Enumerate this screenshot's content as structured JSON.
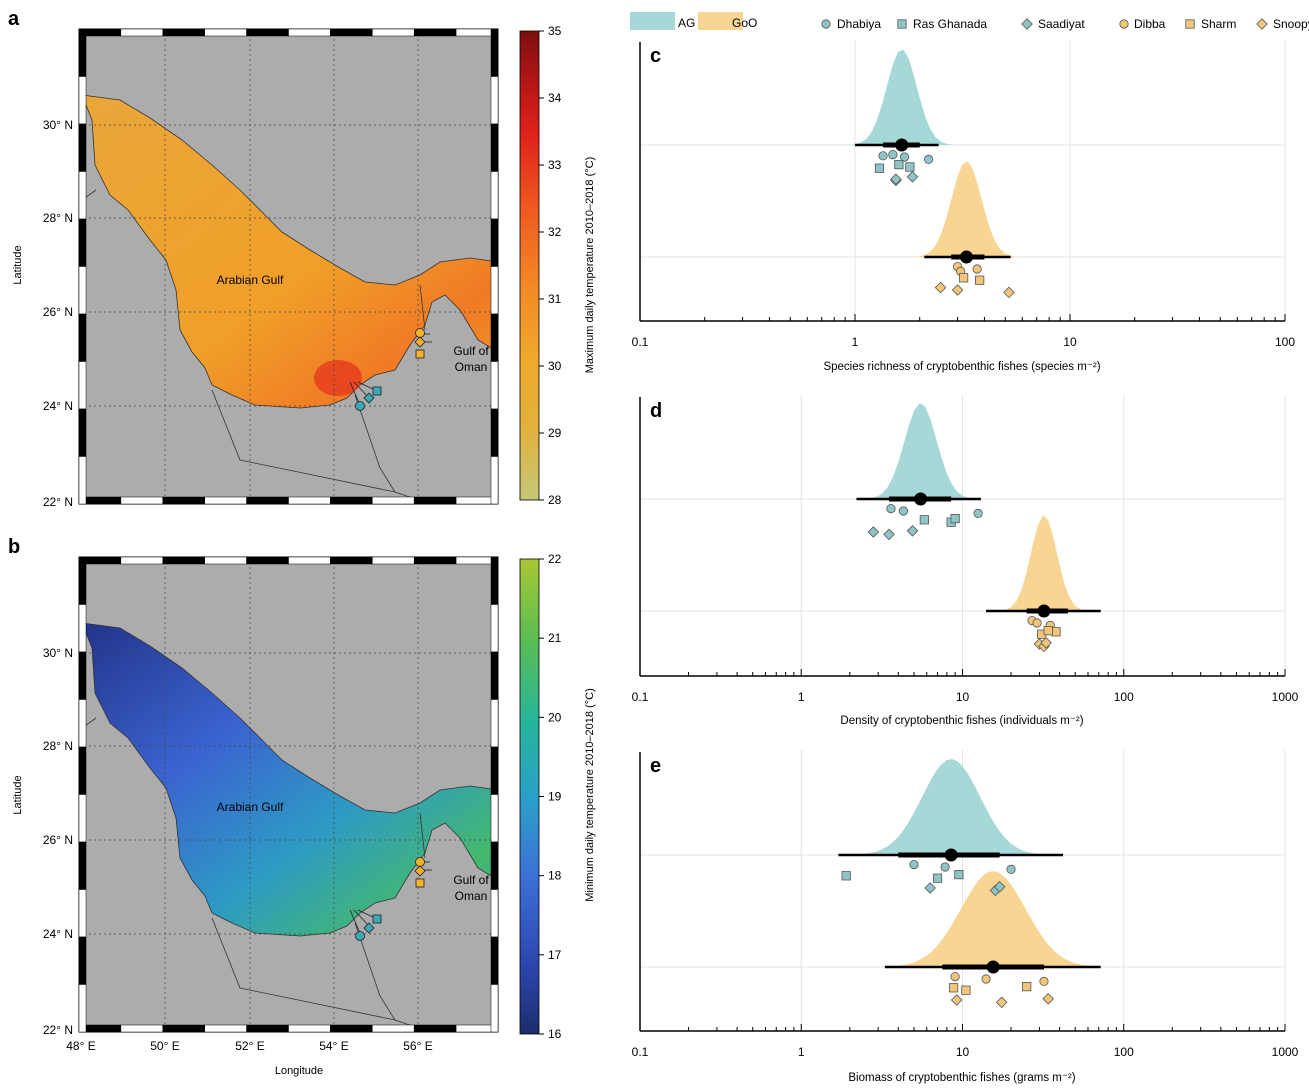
{
  "panels": {
    "a": {
      "label": "a",
      "xlabel": "Longitude",
      "ylabel": "Latitude",
      "colorbar_label": "Maximum daily temperature 2010–2018 (°C)",
      "colorbar_ticks": [
        "28",
        "29",
        "30",
        "31",
        "32",
        "33",
        "34",
        "35"
      ],
      "colors": [
        "#c5c778",
        "#e3b13a",
        "#f0a92b",
        "#f28a26",
        "#ef5a20",
        "#e0221b",
        "#b01516",
        "#7d0f0f"
      ],
      "region_labels": {
        "arabian_gulf": "Arabian Gulf",
        "gulf_of_oman_1": "Gulf of",
        "gulf_of_oman_2": "Oman"
      }
    },
    "b": {
      "label": "b",
      "xlabel": "Longitude",
      "ylabel": "Latitude",
      "colorbar_label": "Minimum daily temperature 2010–2018 (°C)",
      "colorbar_ticks": [
        "16",
        "17",
        "18",
        "19",
        "20",
        "21",
        "22"
      ],
      "colors": [
        "#1c2e6e",
        "#2d47b0",
        "#3c70d6",
        "#2aa0c8",
        "#27b59a",
        "#5bbd53",
        "#a8c732"
      ],
      "region_labels": {
        "arabian_gulf": "Arabian Gulf",
        "gulf_of_oman_1": "Gulf of",
        "gulf_of_oman_2": "Oman"
      }
    },
    "map_ticks": {
      "lat": [
        "30° N",
        "28° N",
        "26° N",
        "24° N",
        "22° N"
      ],
      "lon": [
        "48° E",
        "50° E",
        "52° E",
        "54° E",
        "56° E"
      ]
    }
  },
  "legend": {
    "regions": [
      {
        "name": "AG",
        "color": "#a6d8d8"
      },
      {
        "name": "GoO",
        "color": "#f8d592"
      }
    ],
    "sites": [
      {
        "name": "Dhabiya",
        "shape": "circle",
        "region": "AG"
      },
      {
        "name": "Ras Ghanada",
        "shape": "square",
        "region": "AG"
      },
      {
        "name": "Saadiyat",
        "shape": "diamond",
        "region": "AG"
      },
      {
        "name": "Dibba",
        "shape": "circle",
        "region": "GoO"
      },
      {
        "name": "Sharm",
        "shape": "square",
        "region": "GoO"
      },
      {
        "name": "Snoopy",
        "shape": "diamond",
        "region": "GoO"
      }
    ],
    "marker_colors": {
      "AG": "#8fc4c6",
      "GoO": "#f1c57a"
    }
  },
  "chart_data": [
    {
      "panel": "c",
      "type": "scatter",
      "label": "c",
      "xlabel": "Species richness of cryptobenthic fishes (species m⁻²)",
      "xscale": "log",
      "xlim": [
        0.1,
        100
      ],
      "xticks": [
        "0.1",
        "1",
        "10",
        "100"
      ],
      "series": [
        {
          "name": "AG",
          "mean": 1.65,
          "ci_inner": [
            1.35,
            2.0
          ],
          "ci_outer": [
            1.0,
            2.45
          ],
          "density_width": 0.07,
          "points": [
            [
              1.5,
              "circle"
            ],
            [
              1.7,
              "circle"
            ],
            [
              2.2,
              "circle"
            ],
            [
              1.35,
              "circle"
            ],
            [
              1.3,
              "square"
            ],
            [
              1.6,
              "square"
            ],
            [
              1.8,
              "square"
            ],
            [
              1.55,
              "diamond"
            ],
            [
              1.85,
              "diamond"
            ],
            [
              1.55,
              "diamond"
            ]
          ]
        },
        {
          "name": "GoO",
          "mean": 3.3,
          "ci_inner": [
            2.8,
            4.0
          ],
          "ci_outer": [
            2.1,
            5.3
          ],
          "density_width": 0.07,
          "points": [
            [
              3.0,
              "circle"
            ],
            [
              3.7,
              "circle"
            ],
            [
              3.1,
              "circle"
            ],
            [
              3.2,
              "square"
            ],
            [
              3.8,
              "square"
            ],
            [
              2.5,
              "diamond"
            ],
            [
              3.0,
              "diamond"
            ],
            [
              5.2,
              "diamond"
            ]
          ]
        }
      ]
    },
    {
      "panel": "d",
      "type": "scatter",
      "label": "d",
      "xlabel": "Density of cryptobenthic fishes (individuals m⁻²)",
      "xscale": "log",
      "xlim": [
        0.1,
        1000
      ],
      "xticks": [
        "0.1",
        "1",
        "10",
        "100",
        "1000"
      ],
      "series": [
        {
          "name": "AG",
          "mean": 5.5,
          "ci_inner": [
            3.5,
            8.5
          ],
          "ci_outer": [
            2.2,
            13.0
          ],
          "density_width": 0.1,
          "points": [
            [
              3.6,
              "circle"
            ],
            [
              4.3,
              "circle"
            ],
            [
              12.5,
              "circle"
            ],
            [
              5.8,
              "square"
            ],
            [
              8.5,
              "square"
            ],
            [
              9.0,
              "square"
            ],
            [
              2.8,
              "diamond"
            ],
            [
              3.5,
              "diamond"
            ],
            [
              4.9,
              "diamond"
            ]
          ]
        },
        {
          "name": "GoO",
          "mean": 32,
          "ci_inner": [
            25,
            45
          ],
          "ci_outer": [
            14,
            72
          ],
          "density_width": 0.08,
          "points": [
            [
              27,
              "circle"
            ],
            [
              29,
              "circle"
            ],
            [
              35,
              "circle"
            ],
            [
              38,
              "square"
            ],
            [
              31,
              "square"
            ],
            [
              34,
              "square"
            ],
            [
              30,
              "diamond"
            ],
            [
              32,
              "diamond"
            ],
            [
              33,
              "diamond"
            ]
          ]
        }
      ]
    },
    {
      "panel": "e",
      "type": "scatter",
      "label": "e",
      "xlabel": "Biomass of cryptobenthic fishes (grams m⁻²)",
      "xscale": "log",
      "xlim": [
        0.1,
        1000
      ],
      "xticks": [
        "0.1",
        "1",
        "10",
        "100",
        "1000"
      ],
      "series": [
        {
          "name": "AG",
          "mean": 8.5,
          "ci_inner": [
            4.0,
            17.0
          ],
          "ci_outer": [
            1.7,
            42.0
          ],
          "density_width": 0.18,
          "points": [
            [
              5.0,
              "circle"
            ],
            [
              7.8,
              "circle"
            ],
            [
              20.0,
              "circle"
            ],
            [
              1.9,
              "square"
            ],
            [
              7.0,
              "square"
            ],
            [
              9.5,
              "square"
            ],
            [
              6.3,
              "diamond"
            ],
            [
              16.0,
              "diamond"
            ],
            [
              17.0,
              "diamond"
            ]
          ]
        },
        {
          "name": "GoO",
          "mean": 15.5,
          "ci_inner": [
            7.5,
            32.0
          ],
          "ci_outer": [
            3.3,
            72.0
          ],
          "density_width": 0.2,
          "points": [
            [
              9.0,
              "circle"
            ],
            [
              14.0,
              "circle"
            ],
            [
              32.0,
              "circle"
            ],
            [
              8.8,
              "square"
            ],
            [
              10.5,
              "square"
            ],
            [
              25.0,
              "square"
            ],
            [
              9.2,
              "diamond"
            ],
            [
              17.5,
              "diamond"
            ],
            [
              34.0,
              "diamond"
            ]
          ]
        }
      ]
    }
  ]
}
